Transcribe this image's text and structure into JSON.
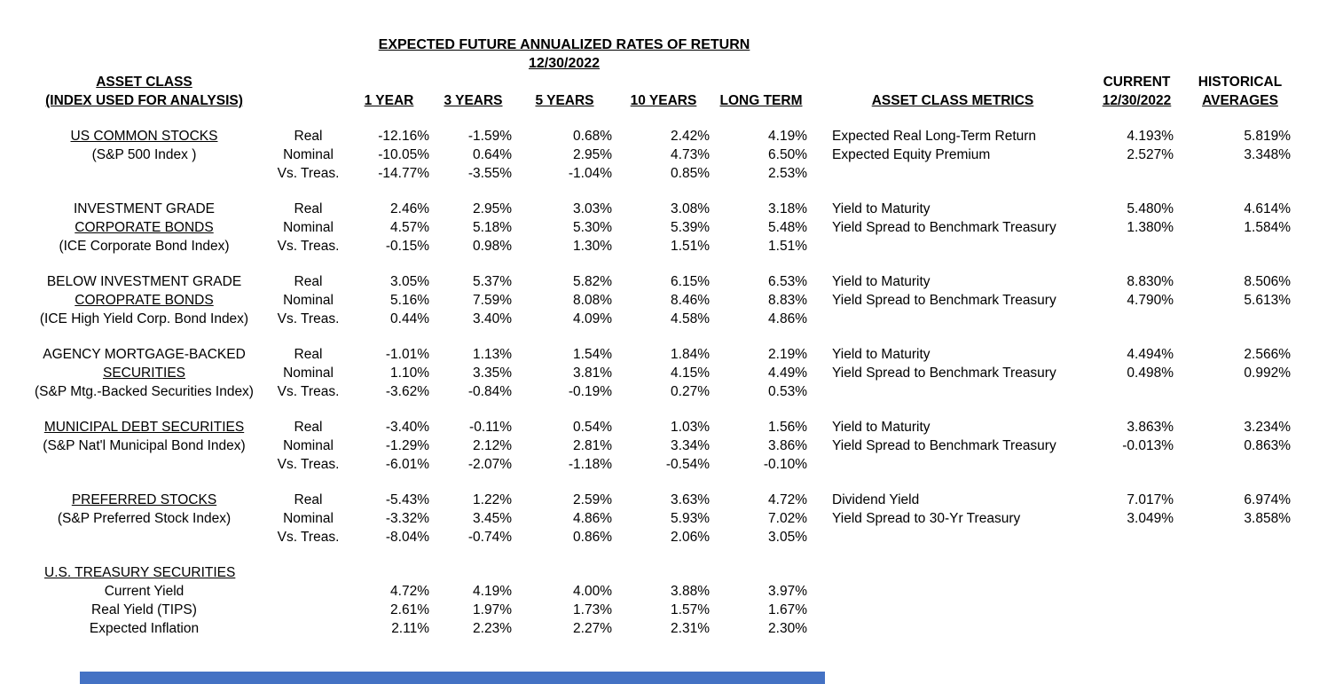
{
  "header": {
    "title": "EXPECTED FUTURE ANNUALIZED RATES OF RETURN",
    "date": "12/30/2022"
  },
  "table": {
    "left_header": [
      "ASSET CLASS",
      "(INDEX USED FOR ANALYSIS)"
    ],
    "period_headers": [
      "1 YEAR",
      "3 YEARS",
      "5 YEARS",
      "10 YEARS",
      "LONG TERM"
    ],
    "metrics_header": "ASSET CLASS METRICS",
    "current_header": [
      "CURRENT",
      "12/30/2022"
    ],
    "historical_header": [
      "HISTORICAL",
      "AVERAGES"
    ],
    "groups": [
      {
        "name_lines": [
          {
            "text": "US COMMON STOCKS",
            "u": true
          },
          {
            "text": "(S&P 500 Index )",
            "u": false
          }
        ],
        "rows": [
          {
            "label": "Real",
            "values": [
              "-12.16%",
              "-1.59%",
              "0.68%",
              "2.42%",
              "4.19%"
            ]
          },
          {
            "label": "Nominal",
            "values": [
              "-10.05%",
              "0.64%",
              "2.95%",
              "4.73%",
              "6.50%"
            ]
          },
          {
            "label": "Vs. Treas.",
            "values": [
              "-14.77%",
              "-3.55%",
              "-1.04%",
              "0.85%",
              "2.53%"
            ]
          }
        ],
        "metrics": [
          {
            "label": "Expected Real Long-Term Return",
            "current": "4.193%",
            "historical": "5.819%"
          },
          {
            "label": "Expected Equity Premium",
            "current": "2.527%",
            "historical": "3.348%"
          }
        ]
      },
      {
        "name_lines": [
          {
            "text": "INVESTMENT GRADE",
            "u": false
          },
          {
            "text": "CORPORATE BONDS",
            "u": true
          },
          {
            "text": "(ICE Corporate Bond Index)",
            "u": false
          }
        ],
        "rows": [
          {
            "label": "Real",
            "values": [
              "2.46%",
              "2.95%",
              "3.03%",
              "3.08%",
              "3.18%"
            ]
          },
          {
            "label": "Nominal",
            "values": [
              "4.57%",
              "5.18%",
              "5.30%",
              "5.39%",
              "5.48%"
            ]
          },
          {
            "label": "Vs. Treas.",
            "values": [
              "-0.15%",
              "0.98%",
              "1.30%",
              "1.51%",
              "1.51%"
            ]
          }
        ],
        "metrics": [
          {
            "label": "Yield to Maturity",
            "current": "5.480%",
            "historical": "4.614%"
          },
          {
            "label": "Yield Spread to Benchmark Treasury",
            "current": "1.380%",
            "historical": "1.584%"
          }
        ]
      },
      {
        "name_lines": [
          {
            "text": "BELOW INVESTMENT GRADE",
            "u": false
          },
          {
            "text": "COROPRATE BONDS",
            "u": true
          },
          {
            "text": "(ICE High Yield Corp. Bond Index)",
            "u": false
          }
        ],
        "rows": [
          {
            "label": "Real",
            "values": [
              "3.05%",
              "5.37%",
              "5.82%",
              "6.15%",
              "6.53%"
            ]
          },
          {
            "label": "Nominal",
            "values": [
              "5.16%",
              "7.59%",
              "8.08%",
              "8.46%",
              "8.83%"
            ]
          },
          {
            "label": "Vs. Treas.",
            "values": [
              "0.44%",
              "3.40%",
              "4.09%",
              "4.58%",
              "4.86%"
            ]
          }
        ],
        "metrics": [
          {
            "label": "Yield to Maturity",
            "current": "8.830%",
            "historical": "8.506%"
          },
          {
            "label": "Yield Spread to Benchmark Treasury",
            "current": "4.790%",
            "historical": "5.613%"
          }
        ]
      },
      {
        "name_lines": [
          {
            "text": "AGENCY MORTGAGE-BACKED",
            "u": false
          },
          {
            "text": "SECURITIES",
            "u": true
          },
          {
            "text": "(S&P Mtg.-Backed Securities Index)",
            "u": false
          }
        ],
        "rows": [
          {
            "label": "Real",
            "values": [
              "-1.01%",
              "1.13%",
              "1.54%",
              "1.84%",
              "2.19%"
            ]
          },
          {
            "label": "Nominal",
            "values": [
              "1.10%",
              "3.35%",
              "3.81%",
              "4.15%",
              "4.49%"
            ]
          },
          {
            "label": "Vs. Treas.",
            "values": [
              "-3.62%",
              "-0.84%",
              "-0.19%",
              "0.27%",
              "0.53%"
            ]
          }
        ],
        "metrics": [
          {
            "label": "Yield to Maturity",
            "current": "4.494%",
            "historical": "2.566%"
          },
          {
            "label": "Yield Spread to Benchmark Treasury",
            "current": "0.498%",
            "historical": "0.992%"
          }
        ]
      },
      {
        "name_lines": [
          {
            "text": "MUNICIPAL DEBT SECURITIES",
            "u": true
          },
          {
            "text": "(S&P Nat'l Municipal Bond Index)",
            "u": false
          }
        ],
        "rows": [
          {
            "label": "Real",
            "values": [
              "-3.40%",
              "-0.11%",
              "0.54%",
              "1.03%",
              "1.56%"
            ]
          },
          {
            "label": "Nominal",
            "values": [
              "-1.29%",
              "2.12%",
              "2.81%",
              "3.34%",
              "3.86%"
            ]
          },
          {
            "label": "Vs. Treas.",
            "values": [
              "-6.01%",
              "-2.07%",
              "-1.18%",
              "-0.54%",
              "-0.10%"
            ]
          }
        ],
        "metrics": [
          {
            "label": "Yield to Maturity",
            "current": "3.863%",
            "historical": "3.234%"
          },
          {
            "label": "Yield Spread to Benchmark Treasury",
            "current": "-0.013%",
            "historical": "0.863%"
          }
        ]
      },
      {
        "name_lines": [
          {
            "text": "PREFERRED STOCKS",
            "u": true
          },
          {
            "text": "(S&P Preferred Stock Index)",
            "u": false
          }
        ],
        "rows": [
          {
            "label": "Real",
            "values": [
              "-5.43%",
              "1.22%",
              "2.59%",
              "3.63%",
              "4.72%"
            ]
          },
          {
            "label": "Nominal",
            "values": [
              "-3.32%",
              "3.45%",
              "4.86%",
              "5.93%",
              "7.02%"
            ]
          },
          {
            "label": "Vs. Treas.",
            "values": [
              "-8.04%",
              "-0.74%",
              "0.86%",
              "2.06%",
              "3.05%"
            ]
          }
        ],
        "metrics": [
          {
            "label": "Dividend Yield",
            "current": "7.017%",
            "historical": "6.974%"
          },
          {
            "label": "Yield Spread to 30-Yr Treasury",
            "current": "3.049%",
            "historical": "3.858%"
          }
        ]
      }
    ],
    "treasury": {
      "title": "U.S. TREASURY SECURITIES",
      "rows": [
        {
          "label": "Current Yield",
          "values": [
            "4.72%",
            "4.19%",
            "4.00%",
            "3.88%",
            "3.97%"
          ]
        },
        {
          "label": "Real Yield (TIPS)",
          "values": [
            "2.61%",
            "1.97%",
            "1.73%",
            "1.57%",
            "1.67%"
          ]
        },
        {
          "label": "Expected Inflation",
          "values": [
            "2.11%",
            "2.23%",
            "2.27%",
            "2.31%",
            "2.30%"
          ]
        }
      ]
    }
  },
  "footer": {
    "bar_color": "#4472c4"
  }
}
